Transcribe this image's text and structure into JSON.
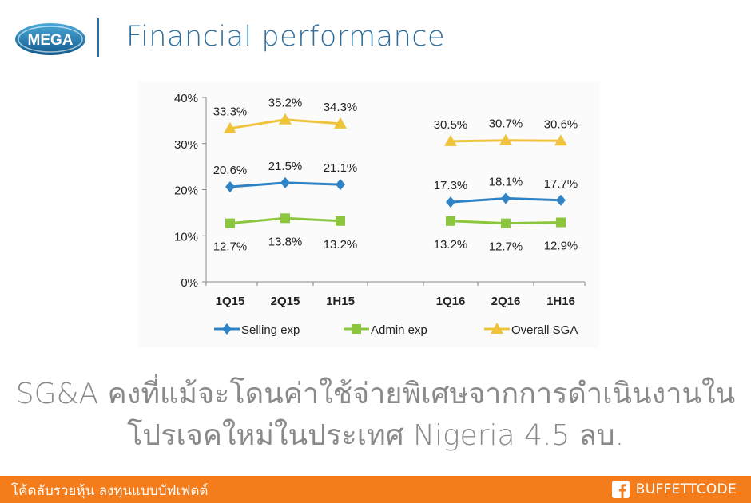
{
  "header": {
    "logo_text": "MEGA",
    "title": "Financial performance"
  },
  "chart_data": {
    "type": "line",
    "categories": [
      "1Q15",
      "2Q15",
      "1H15",
      "1Q16",
      "2Q16",
      "1H16"
    ],
    "groups": [
      [
        0,
        1,
        2
      ],
      [
        3,
        4,
        5
      ]
    ],
    "ylim": [
      0,
      40
    ],
    "yticks": [
      0,
      10,
      20,
      30,
      40
    ],
    "ytick_labels": [
      "0%",
      "10%",
      "20%",
      "30%",
      "40%"
    ],
    "grid": false,
    "legend_position": "bottom",
    "series": [
      {
        "name": "Selling exp",
        "color": "#2e83c6",
        "marker": "diamond",
        "values": [
          20.6,
          21.5,
          21.1,
          17.3,
          18.1,
          17.7
        ],
        "labels": [
          "20.6%",
          "21.5%",
          "21.1%",
          "17.3%",
          "18.1%",
          "17.7%"
        ],
        "label_position": "above"
      },
      {
        "name": "Admin exp",
        "color": "#8cc63f",
        "marker": "square",
        "values": [
          12.7,
          13.8,
          13.2,
          13.2,
          12.7,
          12.9
        ],
        "labels": [
          "12.7%",
          "13.8%",
          "13.2%",
          "13.2%",
          "12.7%",
          "12.9%"
        ],
        "label_position": "below"
      },
      {
        "name": "Overall SGA",
        "color": "#f0c33c",
        "marker": "triangle",
        "values": [
          33.3,
          35.2,
          34.3,
          30.5,
          30.7,
          30.6
        ],
        "labels": [
          "33.3%",
          "35.2%",
          "34.3%",
          "30.5%",
          "30.7%",
          "30.6%"
        ],
        "label_position": "above"
      }
    ]
  },
  "caption": {
    "line1": "SG&A คงที่แม้จะโดนค่าใช้จ่ายพิเศษจากการดำเนินงานใน",
    "line2": "โปรเจคใหม่ในประเทศ Nigeria 4.5 ลบ."
  },
  "footer": {
    "tagline": "โค้ดลับรวยหุ้น ลงทุนแบบบัฟเฟตต์",
    "brand": "BUFFETTCODE"
  }
}
